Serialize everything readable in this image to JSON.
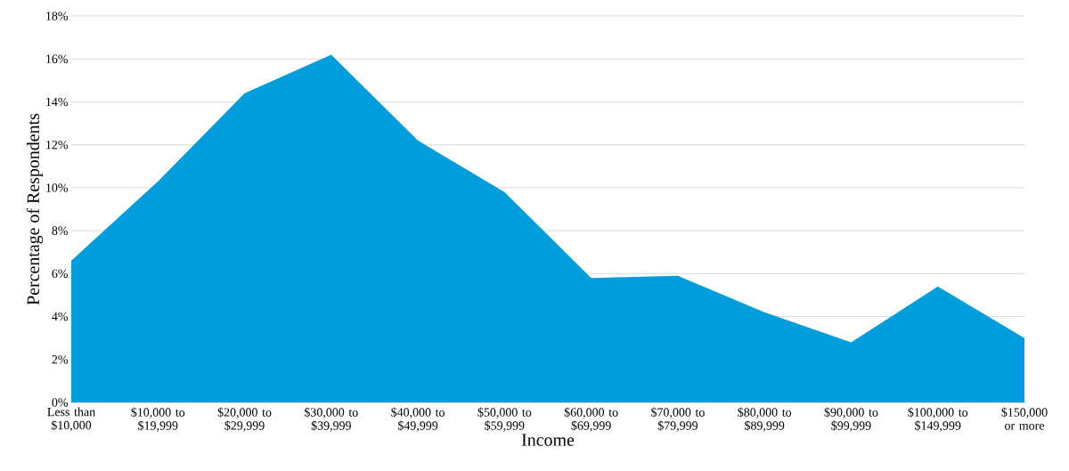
{
  "chart_data": {
    "type": "area",
    "xlabel": "Income",
    "ylabel": "Percentage  of Respondents",
    "categories": [
      "Less than $10,000",
      "$10,000 to $19,999",
      "$20,000 to $29,999",
      "$30,000 to $39,999",
      "$40,000 to $49,999",
      "$50,000 to $59,999",
      "$60,000 to $69,999",
      "$70,000 to $79,999",
      "$80,000 to $89,999",
      "$90,000 to $99,999",
      "$100,000 to $149,999",
      "$150,000 or more"
    ],
    "values": [
      6.6,
      10.3,
      14.4,
      16.2,
      12.2,
      9.8,
      5.8,
      5.9,
      4.2,
      2.8,
      5.4,
      3.0
    ],
    "color": "#009ddc",
    "ylim": [
      0,
      18
    ],
    "yticks": [
      {
        "value": 0,
        "label": "0%"
      },
      {
        "value": 2,
        "label": "2%"
      },
      {
        "value": 4,
        "label": "4%"
      },
      {
        "value": 6,
        "label": "6%"
      },
      {
        "value": 8,
        "label": "8%"
      },
      {
        "value": 10,
        "label": "10%"
      },
      {
        "value": 12,
        "label": "12%"
      },
      {
        "value": 14,
        "label": "14%"
      },
      {
        "value": 16,
        "label": "16%"
      },
      {
        "value": 18,
        "label": "18%"
      }
    ],
    "grid": "y"
  }
}
